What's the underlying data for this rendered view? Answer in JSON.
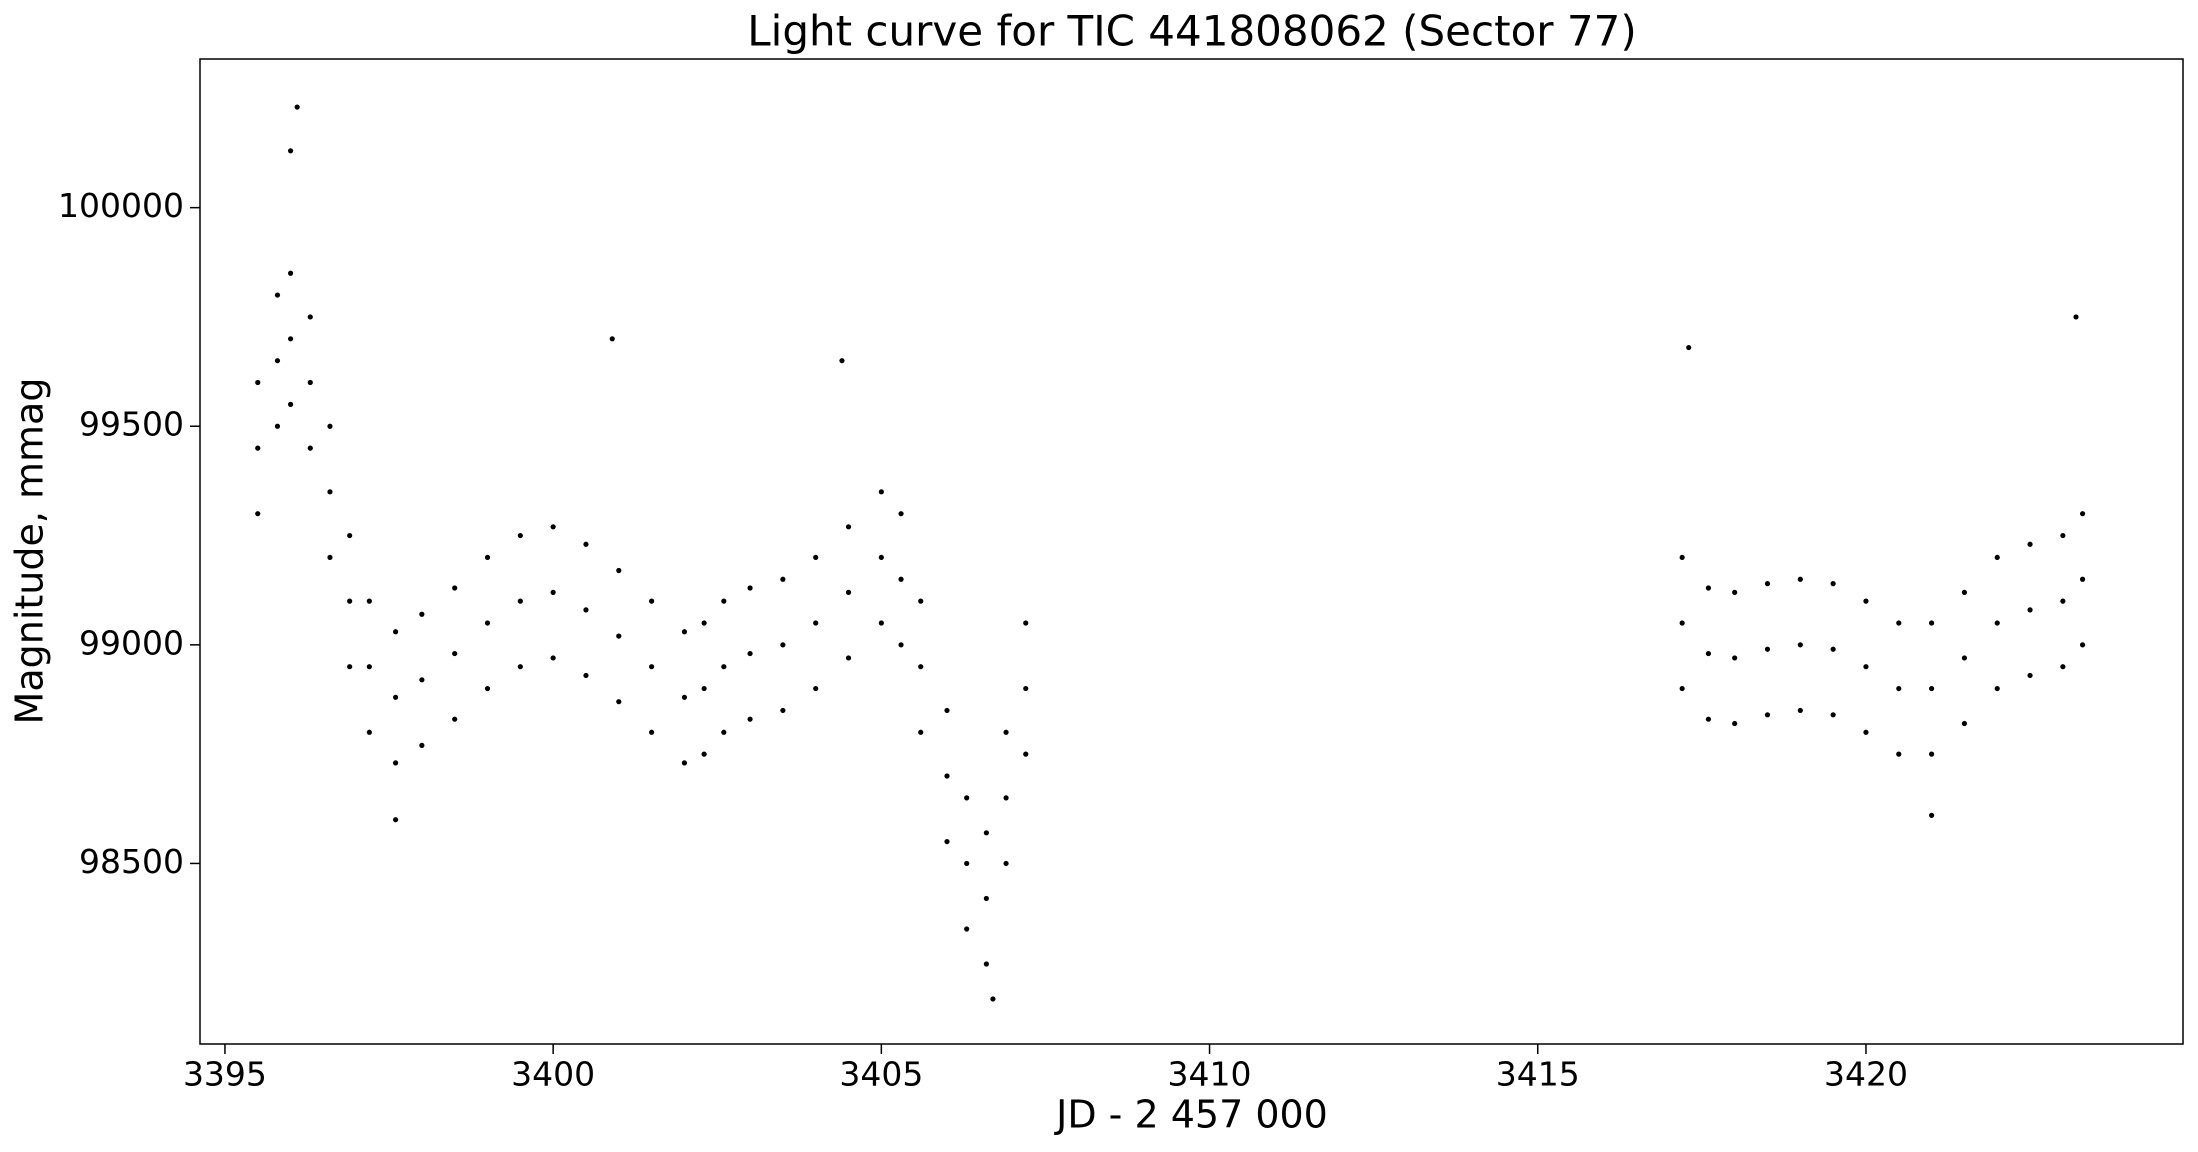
{
  "chart_data": {
    "type": "scatter",
    "title": "Light curve for TIC 441808062 (Sector 77)",
    "x_label": "JD - 2 457 000",
    "y_label": "Magnitude, mmag",
    "color": "#000000",
    "xlim": [
      3394.62,
      3424.83
    ],
    "ylim": [
      98087,
      100340
    ],
    "xticks": [
      3395,
      3400,
      3405,
      3410,
      3415,
      3420
    ],
    "yticks": [
      98500,
      99000,
      99500,
      100000
    ],
    "x": [
      3395.5,
      3395.8,
      3396.0,
      3396.3,
      3396.6,
      3396.9,
      3397.2,
      3397.6,
      3398.0,
      3398.5,
      3399.0,
      3399.5,
      3400.0,
      3400.5,
      3401.0,
      3401.5,
      3402.0,
      3402.3,
      3402.6,
      3403.0,
      3403.5,
      3404.0,
      3404.5,
      3405.0,
      3405.3,
      3405.6,
      3406.0,
      3406.3,
      3406.6,
      3406.9,
      3407.2,
      3417.2,
      3417.6,
      3418.0,
      3418.5,
      3419.0,
      3419.5,
      3420.0,
      3420.5,
      3421.0,
      3421.5,
      3422.0,
      3422.5,
      3423.0,
      3423.3,
      3395.5,
      3395.8,
      3396.0,
      3396.3,
      3396.6,
      3396.9,
      3397.2,
      3397.6,
      3398.0,
      3398.5,
      3399.0,
      3399.5,
      3400.0,
      3400.5,
      3401.0,
      3401.5,
      3402.0,
      3402.3,
      3402.6,
      3403.0,
      3403.5,
      3404.0,
      3404.5,
      3405.0,
      3405.3,
      3405.6,
      3406.0,
      3406.3,
      3406.6,
      3406.9,
      3407.2,
      3417.2,
      3417.6,
      3418.0,
      3418.5,
      3419.0,
      3419.5,
      3420.0,
      3420.5,
      3421.0,
      3421.5,
      3422.0,
      3422.5,
      3423.0,
      3423.3,
      3395.5,
      3395.8,
      3396.0,
      3396.3,
      3396.6,
      3396.9,
      3397.2,
      3397.6,
      3398.0,
      3398.5,
      3399.0,
      3399.5,
      3400.0,
      3400.5,
      3401.0,
      3401.5,
      3402.0,
      3402.3,
      3402.6,
      3403.0,
      3403.5,
      3404.0,
      3404.5,
      3405.0,
      3405.3,
      3405.6,
      3406.0,
      3406.3,
      3406.6,
      3406.9,
      3407.2,
      3417.2,
      3417.6,
      3418.0,
      3418.5,
      3419.0,
      3419.5,
      3420.0,
      3420.5,
      3421.0,
      3421.5,
      3422.0,
      3422.5,
      3423.0,
      3423.3,
      3396.1,
      3396.0,
      3400.9,
      3404.4,
      3406.7,
      3423.2,
      3417.3,
      3421.0,
      3397.6
    ],
    "values": [
      99450,
      99650,
      99700,
      99600,
      99350,
      99100,
      98950,
      98880,
      98920,
      98980,
      99050,
      99100,
      99120,
      99080,
      99020,
      98950,
      98880,
      98900,
      98950,
      98980,
      99000,
      99050,
      99120,
      99200,
      99150,
      98950,
      98700,
      98500,
      98420,
      98650,
      98900,
      99050,
      98980,
      98970,
      98990,
      99000,
      98990,
      98950,
      98900,
      98900,
      98970,
      99050,
      99080,
      99100,
      99150,
      99600,
      99800,
      99850,
      99750,
      99500,
      99250,
      99100,
      99030,
      99070,
      99130,
      99200,
      99250,
      99270,
      99230,
      99170,
      99100,
      99030,
      99050,
      99100,
      99130,
      99150,
      99200,
      99270,
      99350,
      99300,
      99100,
      98850,
      98650,
      98570,
      98800,
      99050,
      99200,
      99130,
      99120,
      99140,
      99150,
      99140,
      99100,
      99050,
      99050,
      99120,
      99200,
      99230,
      99250,
      99300,
      99300,
      99500,
      99550,
      99450,
      99200,
      98950,
      98800,
      98730,
      98770,
      98830,
      98900,
      98950,
      98970,
      98930,
      98870,
      98800,
      98730,
      98750,
      98800,
      98830,
      98850,
      98900,
      98970,
      99050,
      99000,
      98800,
      98550,
      98350,
      98270,
      98500,
      98750,
      98900,
      98830,
      98820,
      98840,
      98850,
      98840,
      98800,
      98750,
      98750,
      98820,
      98900,
      98930,
      98950,
      99000,
      100230,
      100130,
      99700,
      99650,
      98190,
      99750,
      99680,
      98610,
      98600
    ]
  }
}
